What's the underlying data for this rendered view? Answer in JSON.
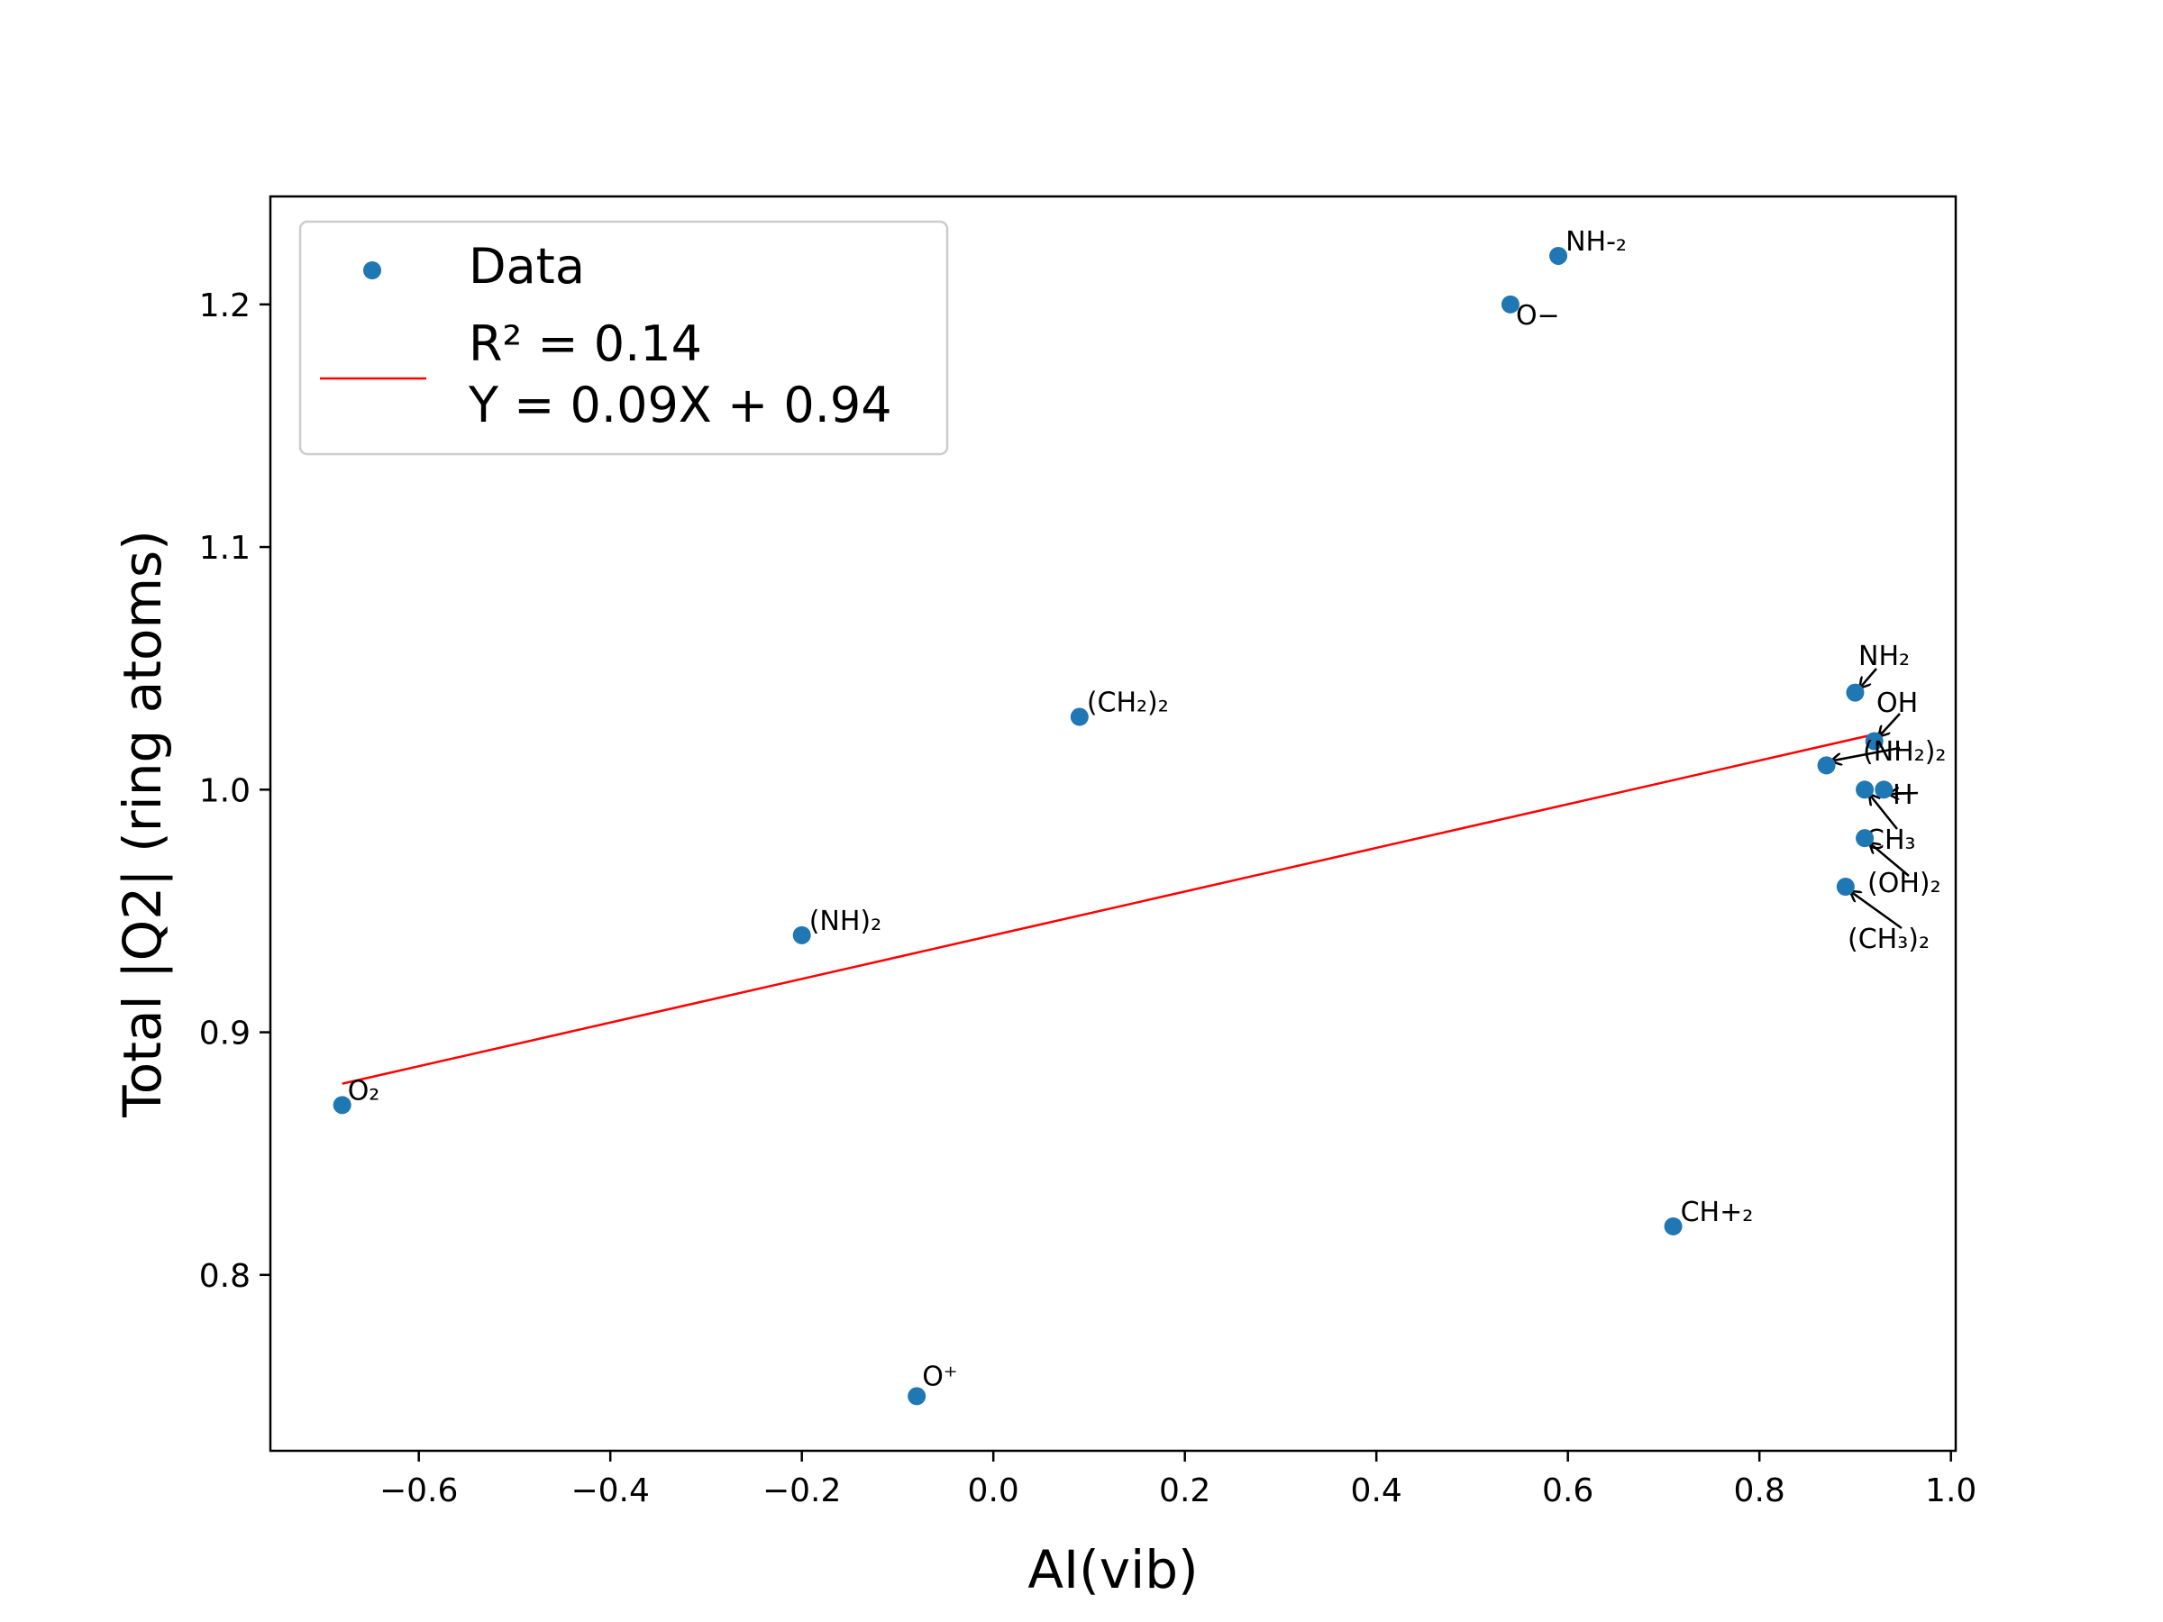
{
  "chart_data": {
    "type": "scatter",
    "xlabel": "AI(vib)",
    "ylabel": "Total |Q2| (ring atoms)",
    "xlim": [
      -0.755,
      1.005
    ],
    "ylim": [
      0.7275,
      1.2445
    ],
    "xticks": [
      -0.6,
      -0.4,
      -0.2,
      0.0,
      0.2,
      0.4,
      0.6,
      0.8,
      1.0
    ],
    "xtick_labels": [
      "−0.6",
      "−0.4",
      "−0.2",
      "0.0",
      "0.2",
      "0.4",
      "0.6",
      "0.8",
      "1.0"
    ],
    "yticks": [
      0.8,
      0.9,
      1.0,
      1.1,
      1.2
    ],
    "ytick_labels": [
      "0.8",
      "0.9",
      "1.0",
      "1.1",
      "1.2"
    ],
    "grid": false,
    "legend": {
      "placement": "top-left",
      "scatter_label": "Data",
      "fit_label_line1": "R² = 0.14",
      "fit_label_line2": "Y = 0.09X + 0.94"
    },
    "scatter_color": "#1f77b4",
    "fit_color": "#ff0000",
    "fit_line": {
      "slope": 0.09,
      "intercept": 0.94,
      "x_range": [
        -0.68,
        0.93
      ]
    },
    "points": [
      {
        "x": 0.59,
        "y": 1.22,
        "label": "NH-₂"
      },
      {
        "x": 0.54,
        "y": 1.2,
        "label": "O−"
      },
      {
        "x": 0.09,
        "y": 1.03,
        "label": "(CH₂)₂"
      },
      {
        "x": -0.2,
        "y": 0.94,
        "label": "(NH)₂"
      },
      {
        "x": -0.68,
        "y": 0.87,
        "label": "O₂"
      },
      {
        "x": 0.71,
        "y": 0.82,
        "label": "CH+₂"
      },
      {
        "x": -0.08,
        "y": 0.75,
        "label": "O⁺"
      },
      {
        "x": 0.9,
        "y": 1.04,
        "label": "NH₂"
      },
      {
        "x": 0.92,
        "y": 1.02,
        "label": "OH"
      },
      {
        "x": 0.87,
        "y": 1.01,
        "label": "(NH₂)₂"
      },
      {
        "x": 0.91,
        "y": 1.0,
        "label": "CH₃"
      },
      {
        "x": 0.93,
        "y": 1.0,
        "label": "H"
      },
      {
        "x": 0.91,
        "y": 0.98,
        "label": "(OH)₂"
      },
      {
        "x": 0.89,
        "y": 0.96,
        "label": "(CH₃)₂"
      }
    ]
  }
}
